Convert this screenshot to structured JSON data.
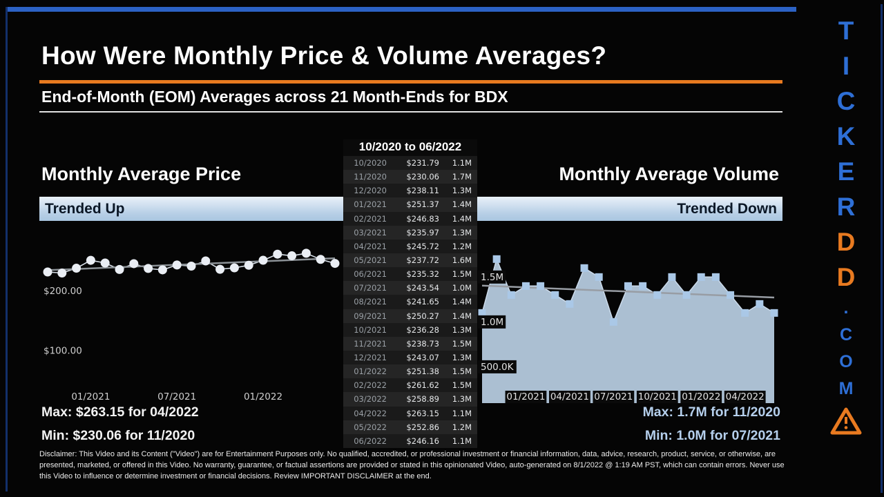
{
  "header": {
    "title": "How Were Monthly Price & Volume Averages?",
    "subtitle": "End-of-Month (EOM) Averages across 21 Month-Ends for BDX"
  },
  "eom_table": {
    "title": "10/2020 to 06/2022",
    "rows": [
      {
        "month": "10/2020",
        "price": "$231.79",
        "volume": "1.1M"
      },
      {
        "month": "11/2020",
        "price": "$230.06",
        "volume": "1.7M"
      },
      {
        "month": "12/2020",
        "price": "$238.11",
        "volume": "1.3M"
      },
      {
        "month": "01/2021",
        "price": "$251.37",
        "volume": "1.4M"
      },
      {
        "month": "02/2021",
        "price": "$246.83",
        "volume": "1.4M"
      },
      {
        "month": "03/2021",
        "price": "$235.97",
        "volume": "1.3M"
      },
      {
        "month": "04/2021",
        "price": "$245.72",
        "volume": "1.2M"
      },
      {
        "month": "05/2021",
        "price": "$237.72",
        "volume": "1.6M"
      },
      {
        "month": "06/2021",
        "price": "$235.32",
        "volume": "1.5M"
      },
      {
        "month": "07/2021",
        "price": "$243.54",
        "volume": "1.0M"
      },
      {
        "month": "08/2021",
        "price": "$241.65",
        "volume": "1.4M"
      },
      {
        "month": "09/2021",
        "price": "$250.27",
        "volume": "1.4M"
      },
      {
        "month": "10/2021",
        "price": "$236.28",
        "volume": "1.3M"
      },
      {
        "month": "11/2021",
        "price": "$238.73",
        "volume": "1.5M"
      },
      {
        "month": "12/2021",
        "price": "$243.07",
        "volume": "1.3M"
      },
      {
        "month": "01/2022",
        "price": "$251.38",
        "volume": "1.5M"
      },
      {
        "month": "02/2022",
        "price": "$261.62",
        "volume": "1.5M"
      },
      {
        "month": "03/2022",
        "price": "$258.89",
        "volume": "1.3M"
      },
      {
        "month": "04/2022",
        "price": "$263.15",
        "volume": "1.1M"
      },
      {
        "month": "05/2022",
        "price": "$252.86",
        "volume": "1.2M"
      },
      {
        "month": "06/2022",
        "price": "$246.16",
        "volume": "1.1M"
      }
    ]
  },
  "price_panel": {
    "title": "Monthly Average Price",
    "banner": "Trended Up",
    "max_label": "Max: $263.15 for 04/2022",
    "min_label": "Min: $230.06 for 11/2020"
  },
  "volume_panel": {
    "title": "Monthly Average Volume",
    "banner": "Trended Down",
    "max_label": "Max: 1.7M for 11/2020",
    "min_label": "Min: 1.0M for 07/2021"
  },
  "chart_data": [
    {
      "id": "price",
      "type": "line",
      "title": "Monthly Average Price",
      "trend": "up",
      "x": [
        "10/2020",
        "11/2020",
        "12/2020",
        "01/2021",
        "02/2021",
        "03/2021",
        "04/2021",
        "05/2021",
        "06/2021",
        "07/2021",
        "08/2021",
        "09/2021",
        "10/2021",
        "11/2021",
        "12/2021",
        "01/2022",
        "02/2022",
        "03/2022",
        "04/2022",
        "05/2022",
        "06/2022"
      ],
      "values": [
        231.79,
        230.06,
        238.11,
        251.37,
        246.83,
        235.97,
        245.72,
        237.72,
        235.32,
        243.54,
        241.65,
        250.27,
        236.28,
        238.73,
        243.07,
        251.38,
        261.62,
        258.89,
        263.15,
        252.86,
        246.16
      ],
      "ylim": [
        40,
        315
      ],
      "y_ticks": [
        {
          "v": 200,
          "label": "$200.00"
        },
        {
          "v": 100,
          "label": "$100.00"
        }
      ],
      "x_ticks": [
        {
          "i": 3,
          "label": "01/2021"
        },
        {
          "i": 9,
          "label": "07/2021"
        },
        {
          "i": 15,
          "label": "01/2022"
        }
      ]
    },
    {
      "id": "volume",
      "type": "area",
      "title": "Monthly Average Volume",
      "trend": "down",
      "unit": "M shares",
      "x": [
        "10/2020",
        "11/2020",
        "12/2020",
        "01/2021",
        "02/2021",
        "03/2021",
        "04/2021",
        "05/2021",
        "06/2021",
        "07/2021",
        "08/2021",
        "09/2021",
        "10/2021",
        "11/2021",
        "12/2021",
        "01/2022",
        "02/2022",
        "03/2022",
        "04/2022",
        "05/2022",
        "06/2022"
      ],
      "values": [
        1.1,
        1.7,
        1.3,
        1.4,
        1.4,
        1.3,
        1.2,
        1.6,
        1.5,
        1.0,
        1.4,
        1.4,
        1.3,
        1.5,
        1.3,
        1.5,
        1.5,
        1.3,
        1.1,
        1.2,
        1.1
      ],
      "ylim": [
        0.28,
        2.11
      ],
      "y_ticks": [
        {
          "v": 1.5,
          "label": "1.5M"
        },
        {
          "v": 1.0,
          "label": "1.0M"
        },
        {
          "v": 0.5,
          "label": "500.0K"
        }
      ],
      "x_ticks": [
        {
          "i": 3,
          "label": "01/2021"
        },
        {
          "i": 6,
          "label": "04/2021"
        },
        {
          "i": 9,
          "label": "07/2021"
        },
        {
          "i": 12,
          "label": "10/2021"
        },
        {
          "i": 15,
          "label": "01/2022"
        },
        {
          "i": 18,
          "label": "04/2022"
        }
      ]
    }
  ],
  "brand": {
    "letters": [
      {
        "ch": "T",
        "color": "#2e6fd6",
        "size": "lg"
      },
      {
        "ch": "I",
        "color": "#2e6fd6",
        "size": "lg"
      },
      {
        "ch": "C",
        "color": "#2e6fd6",
        "size": "lg"
      },
      {
        "ch": "K",
        "color": "#2e6fd6",
        "size": "lg"
      },
      {
        "ch": "E",
        "color": "#2e6fd6",
        "size": "lg"
      },
      {
        "ch": "R",
        "color": "#2e6fd6",
        "size": "lg"
      },
      {
        "ch": "D",
        "color": "#e87a20",
        "size": "lg"
      },
      {
        "ch": "D",
        "color": "#e87a20",
        "size": "lg"
      },
      {
        "ch": ".",
        "color": "#2e6fd6",
        "size": "sm"
      },
      {
        "ch": "C",
        "color": "#2e6fd6",
        "size": "sm"
      },
      {
        "ch": "O",
        "color": "#2e6fd6",
        "size": "sm"
      },
      {
        "ch": "M",
        "color": "#2e6fd6",
        "size": "sm"
      }
    ]
  },
  "disclaimer": "Disclaimer: This Video and its Content (\"Video\") are for Entertainment Purposes only. No qualified, accredited, or professional investment or financial information, data, advice, research, product, service, or otherwise, are presented, marketed, or offered in this Video. No warranty, guarantee, or factual assertions are provided or stated in this opinionated Video, auto-generated on 8/1/2022 @ 1:19 AM PST, which can contain errors. Never use this Video to influence or determine investment or financial decisions. Review IMPORTANT DISCLAIMER at the end.",
  "colors": {
    "accent_orange": "#e87a20",
    "frame_blue": "#2c62c4",
    "brand_blue": "#2e6fd6",
    "banner_light_blue": "#b7cfe6",
    "volume_accent": "#aac8e7"
  }
}
